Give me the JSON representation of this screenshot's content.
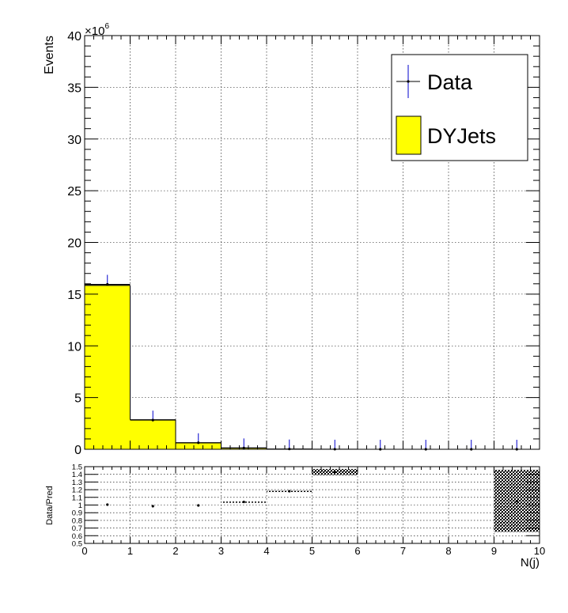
{
  "chart_data": [
    {
      "type": "bar",
      "panel": "main",
      "ylabel": "Events",
      "y_exponent_label": "×10",
      "y_exponent_power": "6",
      "xlim": [
        0,
        10
      ],
      "ylim": [
        0,
        40
      ],
      "y_scale_factor": 1000000,
      "grid": true,
      "yticks": [
        0,
        5,
        10,
        15,
        20,
        25,
        30,
        35,
        40
      ],
      "ytick_labels": [
        "0",
        "5",
        "10",
        "15",
        "20",
        "25",
        "30",
        "35",
        "40"
      ],
      "bin_edges": [
        0,
        1,
        2,
        3,
        4,
        5,
        6,
        7,
        8,
        9,
        10
      ],
      "series": [
        {
          "name": "DYJets",
          "kind": "filled-histogram",
          "color": "#ffff00",
          "values": [
            15.85,
            2.85,
            0.62,
            0.12,
            0.02,
            0.004,
            0.001,
            0.0003,
            0.0001,
            3e-05
          ]
        },
        {
          "name": "Data",
          "kind": "points-with-errors",
          "color": "#000000",
          "error_color": "#0000cc",
          "x": [
            0.5,
            1.5,
            2.5,
            3.5,
            4.5,
            5.5,
            6.5,
            7.5,
            8.5,
            9.5
          ],
          "values": [
            15.95,
            2.82,
            0.63,
            0.13,
            0.025,
            0.006,
            0.001,
            0.0003,
            0.0001,
            3e-05
          ]
        }
      ],
      "legend": {
        "placement": "top-right",
        "entries": [
          {
            "label": "Data",
            "style": "marker"
          },
          {
            "label": "DYJets",
            "style": "fill",
            "color": "#ffff00"
          }
        ]
      }
    },
    {
      "type": "scatter",
      "panel": "ratio",
      "ylabel": "Data/Pred",
      "xlabel": "N(j)",
      "xlim": [
        0,
        10
      ],
      "ylim": [
        0.5,
        1.5
      ],
      "grid": true,
      "xticks": [
        0,
        1,
        2,
        3,
        4,
        5,
        6,
        7,
        8,
        9,
        10
      ],
      "xtick_labels": [
        "0",
        "1",
        "2",
        "3",
        "4",
        "5",
        "6",
        "7",
        "8",
        "9",
        "10"
      ],
      "yticks": [
        0.5,
        0.6,
        0.7,
        0.8,
        0.9,
        1.0,
        1.1,
        1.2,
        1.3,
        1.4,
        1.5
      ],
      "ytick_labels": [
        "0.5",
        "0.6",
        "0.7",
        "0.8",
        "0.9",
        "1",
        "1.1",
        "1.2",
        "1.3",
        "1.4",
        "1.5"
      ],
      "series": [
        {
          "name": "",
          "x": [
            0.5,
            1.5,
            2.5,
            3.5,
            4.5,
            5.5,
            9.5
          ],
          "values": [
            1.005,
            0.985,
            0.995,
            1.04,
            1.18,
            1.43,
            1.05
          ]
        }
      ],
      "uncertainty_bands": [
        {
          "x_range": [
            3,
            4
          ],
          "y_range": [
            1.035,
            1.045
          ]
        },
        {
          "x_range": [
            4,
            5
          ],
          "y_range": [
            1.175,
            1.185
          ]
        },
        {
          "x_range": [
            5,
            6
          ],
          "y_range": [
            1.39,
            1.47
          ]
        },
        {
          "x_range": [
            9,
            10
          ],
          "y_range": [
            0.65,
            1.46
          ]
        }
      ]
    }
  ]
}
